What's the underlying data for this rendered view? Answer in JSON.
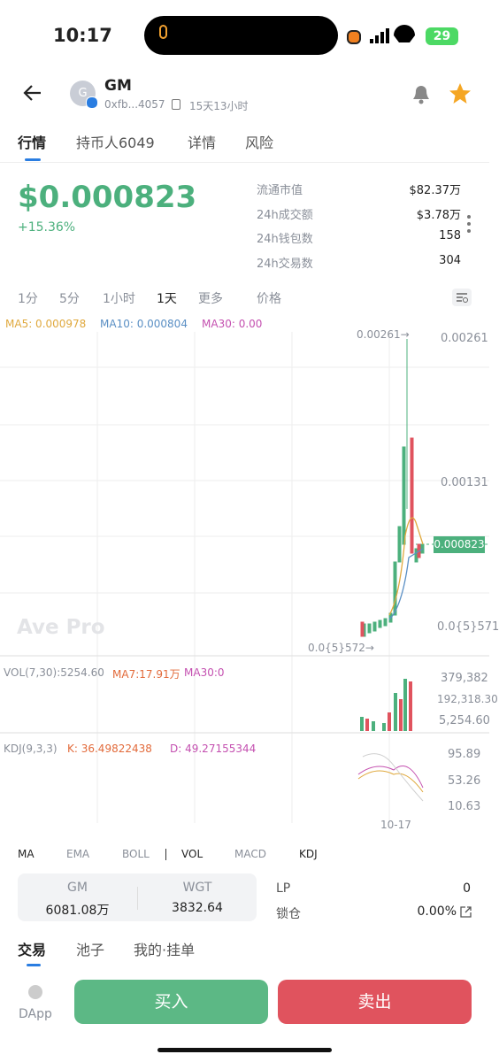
{
  "status": {
    "time": "10:17",
    "battery": "29"
  },
  "header": {
    "avatar": "G",
    "name": "GM",
    "address": "0xfb...4057",
    "age": "15天13小时"
  },
  "tabs": [
    "行情",
    "持币人6049",
    "详情",
    "风险"
  ],
  "price": {
    "value": "$0.000823",
    "change": "+15.36%"
  },
  "stats": [
    {
      "label": "流通市值",
      "value": "$82.37万"
    },
    {
      "label": "24h成交额",
      "value": "$3.78万"
    },
    {
      "label": "24h钱包数",
      "value": "158"
    },
    {
      "label": "24h交易数",
      "value": "304"
    }
  ],
  "intervals": [
    "1分",
    "5分",
    "1小时",
    "1天",
    "更多",
    "价格"
  ],
  "ma": {
    "ma5": "MA5: 0.000978",
    "ma10": "MA10: 0.000804",
    "ma30": "MA30: 0.00"
  },
  "chart": {
    "high_marker": "0.00261→",
    "low_marker": "0.0{5}572→",
    "axis": [
      "0.00261",
      "0.00131",
      "0.0{5}571"
    ],
    "current": "0.000823",
    "watermark": "Ave Pro"
  },
  "vol": {
    "title": "VOL(7,30):5254.60",
    "ma7": "MA7:17.91万",
    "ma30": "MA30:0",
    "axis": [
      "379,382",
      "192,318.30",
      "5,254.60"
    ]
  },
  "kdj": {
    "title": "KDJ(9,3,3)",
    "k": "K:  36.49822438",
    "d": "D:  49.27155344",
    "axis": [
      "95.89",
      "53.26",
      "10.63"
    ],
    "date": "10-17"
  },
  "indicators": [
    "MA",
    "EMA",
    "BOLL",
    "VOL",
    "MACD",
    "KDJ"
  ],
  "balance": {
    "token1": "GM",
    "amount1": "6081.08万",
    "token2": "WGT",
    "amount2": "3832.64",
    "lp_label": "LP",
    "lp_value": "0",
    "lock_label": "锁仓",
    "lock_value": "0.00%"
  },
  "bottom_tabs": [
    "交易",
    "池子",
    "我的·挂单"
  ],
  "actions": {
    "dapp": "DApp",
    "buy": "买入",
    "sell": "卖出"
  }
}
